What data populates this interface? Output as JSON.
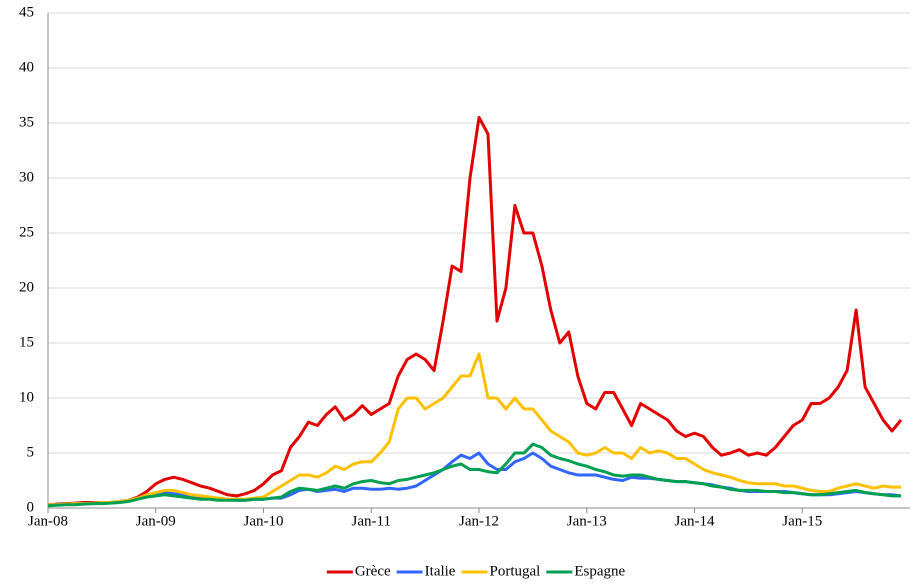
{
  "chart_data": {
    "type": "line",
    "x": [
      "2008-01",
      "2008-02",
      "2008-03",
      "2008-04",
      "2008-05",
      "2008-06",
      "2008-07",
      "2008-08",
      "2008-09",
      "2008-10",
      "2008-11",
      "2008-12",
      "2009-01",
      "2009-02",
      "2009-03",
      "2009-04",
      "2009-05",
      "2009-06",
      "2009-07",
      "2009-08",
      "2009-09",
      "2009-10",
      "2009-11",
      "2009-12",
      "2010-01",
      "2010-02",
      "2010-03",
      "2010-04",
      "2010-05",
      "2010-06",
      "2010-07",
      "2010-08",
      "2010-09",
      "2010-10",
      "2010-11",
      "2010-12",
      "2011-01",
      "2011-02",
      "2011-03",
      "2011-04",
      "2011-05",
      "2011-06",
      "2011-07",
      "2011-08",
      "2011-09",
      "2011-10",
      "2011-11",
      "2011-12",
      "2012-01",
      "2012-02",
      "2012-03",
      "2012-04",
      "2012-05",
      "2012-06",
      "2012-07",
      "2012-08",
      "2012-09",
      "2012-10",
      "2012-11",
      "2012-12",
      "2013-01",
      "2013-02",
      "2013-03",
      "2013-04",
      "2013-05",
      "2013-06",
      "2013-07",
      "2013-08",
      "2013-09",
      "2013-10",
      "2013-11",
      "2013-12",
      "2014-01",
      "2014-02",
      "2014-03",
      "2014-04",
      "2014-05",
      "2014-06",
      "2014-07",
      "2014-08",
      "2014-09",
      "2014-10",
      "2014-11",
      "2014-12",
      "2015-01",
      "2015-02",
      "2015-03",
      "2015-04",
      "2015-05",
      "2015-06",
      "2015-07",
      "2015-08",
      "2015-09",
      "2015-10",
      "2015-11",
      "2015-12"
    ],
    "series": [
      {
        "name": "Grèce",
        "color": "#e30000",
        "values": [
          0.3,
          0.35,
          0.4,
          0.45,
          0.5,
          0.5,
          0.5,
          0.5,
          0.6,
          0.7,
          1.0,
          1.5,
          2.2,
          2.6,
          2.8,
          2.6,
          2.3,
          2.0,
          1.8,
          1.5,
          1.2,
          1.1,
          1.3,
          1.6,
          2.2,
          3.0,
          3.4,
          5.5,
          6.5,
          7.8,
          7.5,
          8.5,
          9.2,
          8.0,
          8.5,
          9.3,
          8.5,
          9.0,
          9.5,
          12.0,
          13.5,
          14.0,
          13.5,
          12.5,
          17.0,
          22.0,
          21.5,
          30.0,
          35.5,
          34.0,
          17.0,
          20.0,
          27.5,
          25.0,
          25.0,
          22.0,
          18.0,
          15.0,
          16.0,
          12.0,
          9.5,
          9.0,
          10.5,
          10.5,
          9.0,
          7.5,
          9.5,
          9.0,
          8.5,
          8.0,
          7.0,
          6.5,
          6.8,
          6.5,
          5.5,
          4.8,
          5.0,
          5.3,
          4.8,
          5.0,
          4.8,
          5.5,
          6.5,
          7.5,
          8.0,
          9.5,
          9.5,
          10.0,
          11.0,
          12.5,
          18.0,
          11.0,
          9.5,
          8.0,
          7.0,
          8.0
        ]
      },
      {
        "name": "Italie",
        "color": "#3366ff",
        "values": [
          0.3,
          0.3,
          0.35,
          0.4,
          0.4,
          0.45,
          0.5,
          0.5,
          0.6,
          0.7,
          0.9,
          1.1,
          1.3,
          1.4,
          1.3,
          1.2,
          1.0,
          0.9,
          0.9,
          0.8,
          0.8,
          0.7,
          0.7,
          0.8,
          0.8,
          0.9,
          0.9,
          1.2,
          1.6,
          1.7,
          1.5,
          1.6,
          1.7,
          1.5,
          1.8,
          1.8,
          1.7,
          1.7,
          1.8,
          1.7,
          1.8,
          2.0,
          2.5,
          3.0,
          3.5,
          4.2,
          4.8,
          4.5,
          5.0,
          4.0,
          3.5,
          3.5,
          4.2,
          4.5,
          5.0,
          4.5,
          3.8,
          3.5,
          3.2,
          3.0,
          3.0,
          3.0,
          2.8,
          2.6,
          2.5,
          2.8,
          2.7,
          2.7,
          2.6,
          2.5,
          2.4,
          2.4,
          2.3,
          2.2,
          2.1,
          1.9,
          1.8,
          1.6,
          1.5,
          1.5,
          1.5,
          1.5,
          1.5,
          1.4,
          1.3,
          1.2,
          1.2,
          1.2,
          1.3,
          1.4,
          1.5,
          1.4,
          1.3,
          1.2,
          1.2,
          1.1
        ]
      },
      {
        "name": "Portugal",
        "color": "#ffc000",
        "values": [
          0.3,
          0.3,
          0.35,
          0.4,
          0.4,
          0.45,
          0.5,
          0.5,
          0.6,
          0.7,
          0.9,
          1.2,
          1.4,
          1.6,
          1.6,
          1.4,
          1.2,
          1.1,
          1.0,
          0.9,
          0.8,
          0.8,
          0.8,
          0.9,
          1.0,
          1.5,
          2.0,
          2.5,
          3.0,
          3.0,
          2.8,
          3.2,
          3.8,
          3.5,
          4.0,
          4.2,
          4.2,
          5.0,
          6.0,
          9.0,
          10.0,
          10.0,
          9.0,
          9.5,
          10.0,
          11.0,
          12.0,
          12.0,
          14.0,
          10.0,
          10.0,
          9.0,
          10.0,
          9.0,
          9.0,
          8.0,
          7.0,
          6.5,
          6.0,
          5.0,
          4.8,
          5.0,
          5.5,
          5.0,
          5.0,
          4.5,
          5.5,
          5.0,
          5.2,
          5.0,
          4.5,
          4.5,
          4.0,
          3.5,
          3.2,
          3.0,
          2.8,
          2.5,
          2.3,
          2.2,
          2.2,
          2.2,
          2.0,
          2.0,
          1.8,
          1.6,
          1.5,
          1.5,
          1.8,
          2.0,
          2.2,
          2.0,
          1.8,
          2.0,
          1.9,
          1.9
        ]
      },
      {
        "name": "Espagne",
        "color": "#00a050",
        "values": [
          0.2,
          0.25,
          0.3,
          0.3,
          0.35,
          0.4,
          0.4,
          0.45,
          0.5,
          0.6,
          0.8,
          1.0,
          1.1,
          1.2,
          1.1,
          1.0,
          0.9,
          0.8,
          0.8,
          0.7,
          0.7,
          0.7,
          0.7,
          0.8,
          0.8,
          0.9,
          1.0,
          1.5,
          1.8,
          1.7,
          1.6,
          1.8,
          2.0,
          1.8,
          2.2,
          2.4,
          2.5,
          2.3,
          2.2,
          2.5,
          2.6,
          2.8,
          3.0,
          3.2,
          3.5,
          3.8,
          4.0,
          3.5,
          3.5,
          3.3,
          3.2,
          4.0,
          5.0,
          5.0,
          5.8,
          5.5,
          4.8,
          4.5,
          4.3,
          4.0,
          3.8,
          3.5,
          3.3,
          3.0,
          2.9,
          3.0,
          3.0,
          2.8,
          2.6,
          2.5,
          2.4,
          2.4,
          2.3,
          2.2,
          2.0,
          1.9,
          1.7,
          1.6,
          1.6,
          1.6,
          1.5,
          1.5,
          1.4,
          1.4,
          1.3,
          1.2,
          1.2,
          1.3,
          1.4,
          1.5,
          1.6,
          1.4,
          1.3,
          1.2,
          1.1,
          1.1
        ]
      }
    ],
    "xlim": [
      "2008-01",
      "2016-01"
    ],
    "xticks": [
      {
        "value": "2008-01",
        "label": "Jan-08"
      },
      {
        "value": "2009-01",
        "label": "Jan-09"
      },
      {
        "value": "2010-01",
        "label": "Jan-10"
      },
      {
        "value": "2011-01",
        "label": "Jan-11"
      },
      {
        "value": "2012-01",
        "label": "Jan-12"
      },
      {
        "value": "2013-01",
        "label": "Jan-13"
      },
      {
        "value": "2014-01",
        "label": "Jan-14"
      },
      {
        "value": "2015-01",
        "label": "Jan-15"
      }
    ],
    "ylim": [
      0,
      45
    ],
    "yticks": [
      0,
      5,
      10,
      15,
      20,
      25,
      30,
      35,
      40,
      45
    ],
    "grid": true,
    "legend": "bottom"
  }
}
